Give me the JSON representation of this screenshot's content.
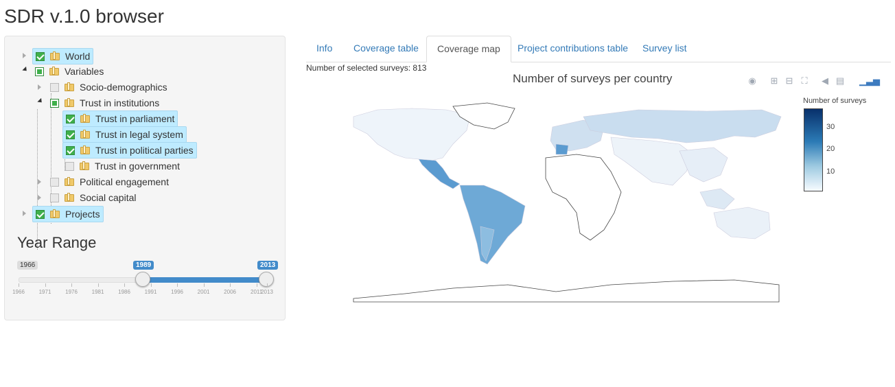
{
  "app": {
    "title": "SDR v.1.0 browser"
  },
  "tree": {
    "world": "World",
    "variables": "Variables",
    "socio": "Socio-demographics",
    "trust": "Trust in institutions",
    "parliament": "Trust in parliament",
    "legal": "Trust in legal system",
    "parties": "Trust in political parties",
    "government": "Trust in government",
    "engagement": "Political engagement",
    "social": "Social capital",
    "projects": "Projects"
  },
  "year_range": {
    "title": "Year Range",
    "min_label": "1966",
    "from_label": "1989",
    "to_label": "2013",
    "from": 1989,
    "to": 2013,
    "ticks": [
      "1966",
      "1971",
      "1976",
      "1981",
      "1986",
      "1991",
      "1996",
      "2001",
      "2006",
      "2011",
      "2013"
    ]
  },
  "tabs": [
    "Info",
    "Coverage table",
    "Coverage map",
    "Project contributions table",
    "Survey list"
  ],
  "active_tab": "Coverage map",
  "status": {
    "selected_surveys": "Number of selected surveys: 813"
  },
  "map": {
    "title": "Number of surveys per country",
    "colorbar_title": "Number of surveys",
    "colorbar_ticks": [
      "30",
      "20",
      "10"
    ]
  },
  "colors": {
    "accent": "#428bca",
    "link": "#337ab7",
    "selected_node": "#beebff",
    "check": "#3fb04b"
  }
}
